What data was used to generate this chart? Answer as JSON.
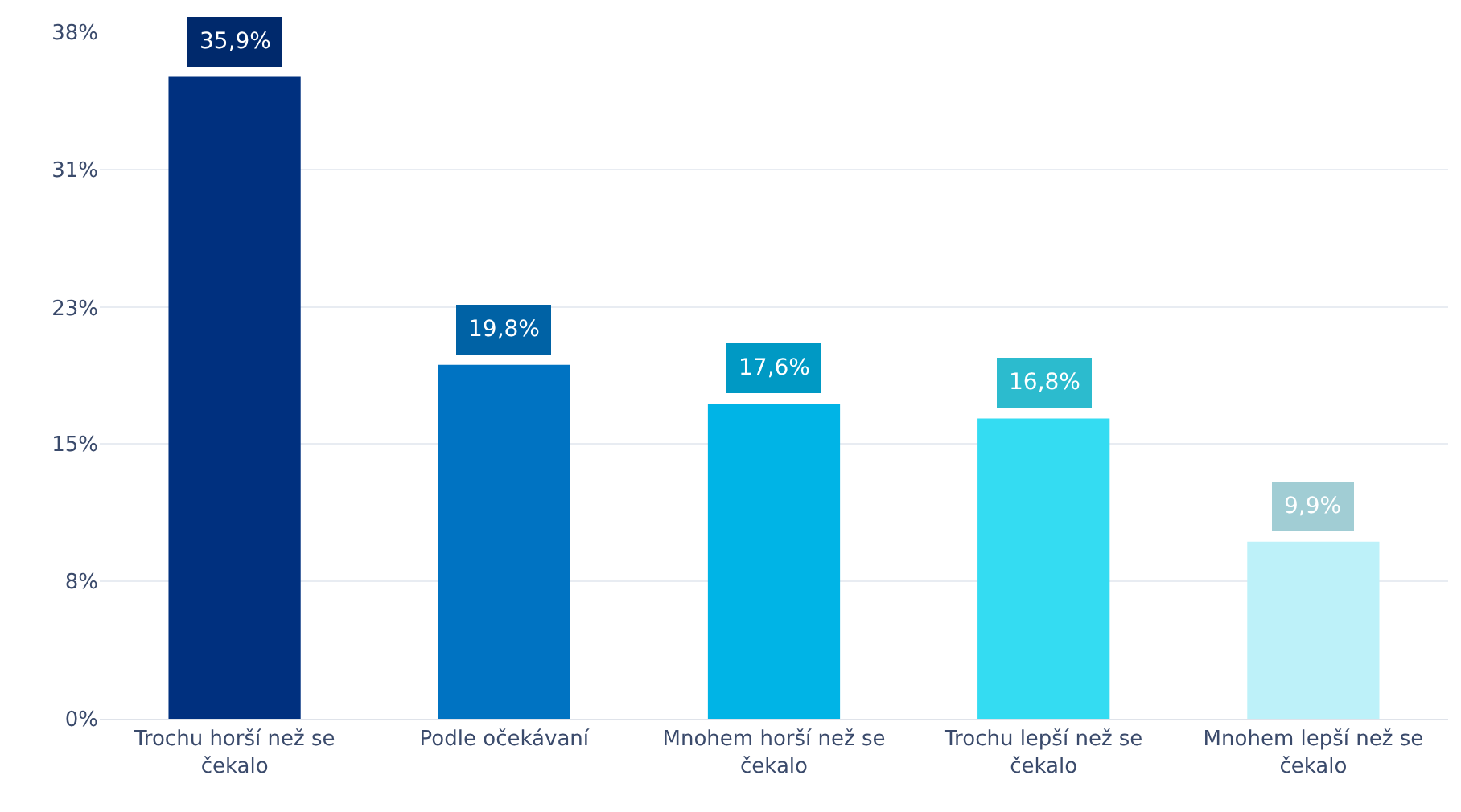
{
  "chart_data": {
    "type": "bar",
    "categories": [
      "Trochu horší než se čekalo",
      "Podle očekávaní",
      "Mnohem horší než se čekalo",
      "Trochu lepší než se čekalo",
      "Mnohem lepší než se čekalo"
    ],
    "values": [
      35.9,
      19.8,
      17.6,
      16.8,
      9.9
    ],
    "value_labels": [
      "35,9%",
      "19,8%",
      "17,6%",
      "16,8%",
      "9,9%"
    ],
    "colors": [
      "#00307f",
      "#0073c2",
      "#00b4e6",
      "#34dcf2",
      "#bdf1f9"
    ],
    "ylim": [
      0,
      38.4
    ],
    "yticks": [
      {
        "value": 0,
        "label": "0%"
      },
      {
        "value": 7.7,
        "label": "8%"
      },
      {
        "value": 15.4,
        "label": "15%"
      },
      {
        "value": 23,
        "label": "23%"
      },
      {
        "value": 30.7,
        "label": "31%"
      },
      {
        "value": 38.4,
        "label": "38%"
      }
    ],
    "grid": "y",
    "legend": false
  }
}
